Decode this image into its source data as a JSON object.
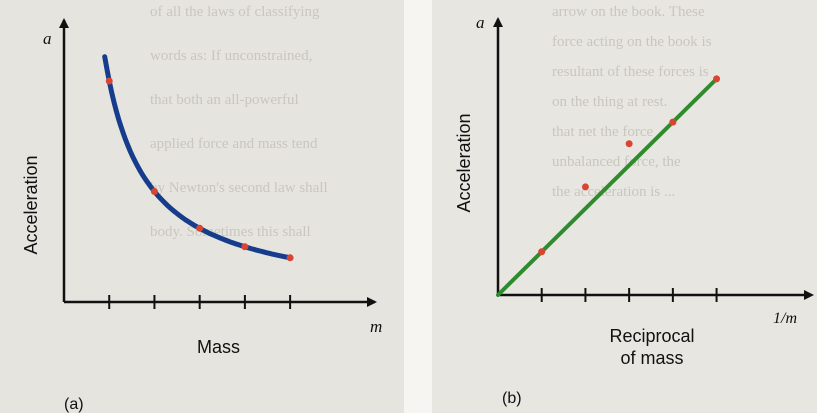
{
  "chart_data": [
    {
      "panel_label": "(a)",
      "type": "line",
      "xlabel": "Mass",
      "ylabel": "Acceleration",
      "x_symbol": "m",
      "y_symbol": "a",
      "x_ticks": 5,
      "series": [
        {
          "x": [
            1,
            2,
            3,
            4,
            5
          ],
          "y": [
            5.0,
            2.5,
            1.67,
            1.25,
            1.0
          ]
        }
      ],
      "curve": "inverse",
      "xlim": [
        0,
        6.7
      ],
      "ylim": [
        0,
        6.2
      ],
      "colors": {
        "curve": "#163d8c",
        "points": "#d84530",
        "axes": "#111111"
      }
    },
    {
      "panel_label": "(b)",
      "type": "line",
      "xlabel": "Reciprocal of mass",
      "xlabel_lines": [
        "Reciprocal",
        "of  mass"
      ],
      "ylabel": "Acceleration",
      "x_symbol": "1/m",
      "y_symbol": "a",
      "x_ticks": 5,
      "series": [
        {
          "x": [
            0.2,
            0.4,
            0.6,
            0.8,
            1.0
          ],
          "y": [
            1.0,
            2.5,
            3.5,
            4.0,
            5.0
          ]
        }
      ],
      "fit_line": {
        "x": [
          0,
          1.0
        ],
        "y": [
          0,
          5.0
        ]
      },
      "xlim": [
        0,
        1.4
      ],
      "ylim": [
        0,
        6.2
      ],
      "colors": {
        "curve": "#2e8b2e",
        "points": "#d84530",
        "axes": "#111111"
      }
    }
  ],
  "background_text": {
    "left": [
      "of all the laws of classifying",
      "words as: If unconstrained,",
      "that both an all-powerful",
      "applied force and mass tend",
      "by Newton's second law shall",
      "body. Sometimes this shall"
    ],
    "right": [
      "arrow on the book. These",
      "force acting on the book is",
      "resultant of these forces is",
      "on the thing at rest.",
      "that net the force",
      "unbalanced force, the",
      "the acceleration is ..."
    ]
  }
}
